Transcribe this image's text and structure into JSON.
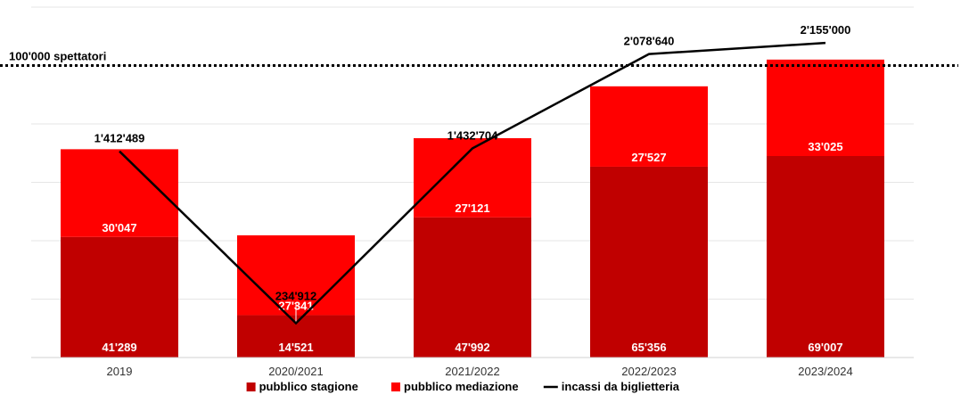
{
  "chart_data": {
    "type": "bar",
    "stacked": true,
    "categories": [
      "2019",
      "2020/2021",
      "2021/2022",
      "2022/2023",
      "2023/2024"
    ],
    "series": [
      {
        "name": "pubblico stagione",
        "kind": "bar",
        "color": "#C00000",
        "values": [
          41289,
          14521,
          47992,
          65356,
          69007
        ],
        "labels": [
          "41'289",
          "14'521",
          "47'992",
          "65'356",
          "69'007"
        ]
      },
      {
        "name": "pubblico mediazione",
        "kind": "bar",
        "color": "#FF0000",
        "values": [
          30047,
          27341,
          27121,
          27527,
          33025
        ],
        "labels": [
          "30'047",
          "27'341",
          "27'121",
          "27'527",
          "33'025"
        ]
      },
      {
        "name": "incassi da biglietteria",
        "kind": "line",
        "color": "#000000",
        "values": [
          1412489,
          234912,
          1432704,
          2078640,
          2155000
        ],
        "labels": [
          "1'412'489",
          "234'912",
          "1'432'704",
          "2'078'640",
          "2'155'000"
        ]
      }
    ],
    "reference_line": {
      "value": 100000,
      "label": "100'000 spettatori",
      "style": "dotted"
    },
    "y_left_range": [
      0,
      120000
    ],
    "y_right_range": [
      0,
      2400000
    ],
    "grid": true,
    "legend_position": "bottom-center"
  }
}
